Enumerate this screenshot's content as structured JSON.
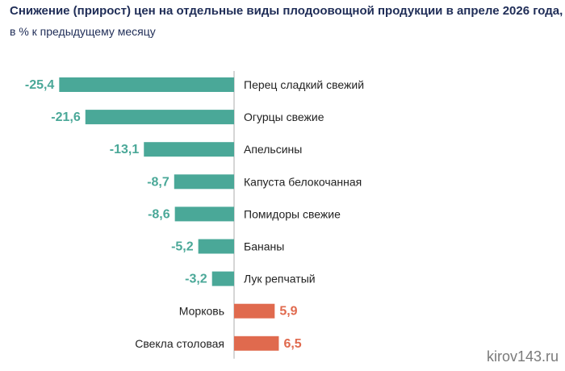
{
  "chart_data": {
    "type": "bar",
    "orientation": "horizontal",
    "title": "Снижение (прирост) цен на отдельные виды плодоовощной продукции в апреле 2026 года,",
    "subtitle": "в % к предыдущему месяцу",
    "categories": [
      "Перец сладкий свежий",
      "Огурцы свежие",
      "Апельсины",
      "Капуста белокочанная",
      "Помидоры свежие",
      "Бананы",
      "Лук репчатый",
      "Морковь",
      "Свекла столовая"
    ],
    "values": [
      -25.4,
      -21.6,
      -13.1,
      -8.7,
      -8.6,
      -5.2,
      -3.2,
      5.9,
      6.5
    ],
    "value_labels": [
      "-25,4",
      "-21,6",
      "-13,1",
      "-8,7",
      "-8,6",
      "-5,2",
      "-3,2",
      "5,9",
      "6,5"
    ],
    "colors": {
      "negative": "#4aa898",
      "positive": "#e06a4e",
      "axis": "#c8c8c8"
    },
    "grid": false,
    "legend": "none"
  },
  "watermark": "kirov143.ru"
}
